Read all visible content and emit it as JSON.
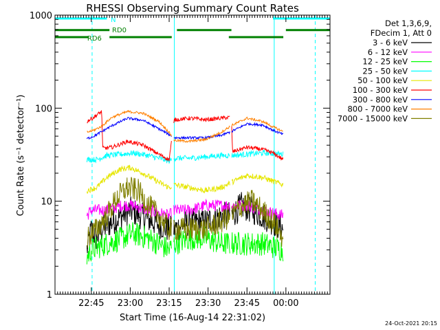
{
  "chart_data": {
    "type": "line",
    "title": "RHESSI Observing Summary Count Rates",
    "xlabel": "Start Time (16-Aug-14 22:31:02)",
    "ylabel": "Count Rate (s⁻¹ detector⁻¹)",
    "x_range_minutes": [
      0,
      106
    ],
    "ylim": [
      1,
      1000
    ],
    "y_scale": "log",
    "x_ticks": [
      {
        "t": 14,
        "label": "22:45"
      },
      {
        "t": 29,
        "label": "23:00"
      },
      {
        "t": 44,
        "label": "23:15"
      },
      {
        "t": 59,
        "label": "23:30"
      },
      {
        "t": 74,
        "label": "23:45"
      },
      {
        "t": 89,
        "label": "00:00"
      }
    ],
    "y_ticks": [
      {
        "v": 1,
        "label": "1"
      },
      {
        "v": 10,
        "label": "10"
      },
      {
        "v": 100,
        "label": "100"
      },
      {
        "v": 1000,
        "label": "1000"
      }
    ],
    "legend_header": [
      "Det 1,3,6,9,",
      "FDecim 1, Att 0"
    ],
    "data_gaps_minutes": [
      [
        0,
        12
      ],
      [
        45,
        45.6
      ],
      [
        67.5,
        68
      ],
      [
        88.5,
        106
      ]
    ],
    "series": [
      {
        "name": "3 - 6 keV",
        "color": "#000000",
        "noise": 0.35,
        "points": [
          [
            12.3,
            3
          ],
          [
            14,
            5
          ],
          [
            16,
            4
          ],
          [
            18,
            5
          ],
          [
            22,
            6
          ],
          [
            26,
            7
          ],
          [
            29,
            8
          ],
          [
            33,
            7
          ],
          [
            38,
            6
          ],
          [
            44,
            5
          ],
          [
            46,
            5
          ],
          [
            52,
            6
          ],
          [
            58,
            6
          ],
          [
            64,
            7
          ],
          [
            68,
            7
          ],
          [
            72,
            9
          ],
          [
            76,
            8
          ],
          [
            80,
            7
          ],
          [
            84,
            6
          ],
          [
            88,
            5
          ]
        ]
      },
      {
        "name": "6 - 12 keV",
        "color": "#ff00ff",
        "noise": 0.15,
        "points": [
          [
            12.3,
            7
          ],
          [
            14,
            8
          ],
          [
            20,
            8
          ],
          [
            26,
            9
          ],
          [
            30,
            9
          ],
          [
            36,
            8
          ],
          [
            44,
            7
          ],
          [
            46,
            8
          ],
          [
            52,
            8
          ],
          [
            58,
            9
          ],
          [
            64,
            9
          ],
          [
            68,
            9
          ],
          [
            74,
            9
          ],
          [
            80,
            8
          ],
          [
            88,
            7
          ]
        ]
      },
      {
        "name": "12 - 25 keV",
        "color": "#00ff00",
        "noise": 0.3,
        "points": [
          [
            12.3,
            2.5
          ],
          [
            14,
            3
          ],
          [
            20,
            3.5
          ],
          [
            26,
            4
          ],
          [
            30,
            4.5
          ],
          [
            36,
            4
          ],
          [
            44,
            3
          ],
          [
            46,
            3.5
          ],
          [
            52,
            4
          ],
          [
            58,
            4
          ],
          [
            64,
            3.5
          ],
          [
            68,
            3.5
          ],
          [
            74,
            3.5
          ],
          [
            80,
            3.5
          ],
          [
            88,
            3
          ]
        ]
      },
      {
        "name": "25 - 50 keV",
        "color": "#00ffff",
        "noise": 0.07,
        "points": [
          [
            12.3,
            28
          ],
          [
            16,
            28
          ],
          [
            20,
            31
          ],
          [
            26,
            32
          ],
          [
            30,
            33
          ],
          [
            36,
            31
          ],
          [
            44,
            27
          ],
          [
            46,
            29
          ],
          [
            52,
            29
          ],
          [
            58,
            30
          ],
          [
            64,
            31
          ],
          [
            68,
            31
          ],
          [
            74,
            32
          ],
          [
            80,
            33
          ],
          [
            88,
            32
          ]
        ]
      },
      {
        "name": "50 - 100 keV",
        "color": "#e6e600",
        "noise": 0.07,
        "points": [
          [
            12.3,
            13
          ],
          [
            16,
            14
          ],
          [
            20,
            18
          ],
          [
            25,
            22
          ],
          [
            29,
            23
          ],
          [
            34,
            20
          ],
          [
            40,
            16
          ],
          [
            44,
            14
          ],
          [
            46,
            15
          ],
          [
            52,
            14
          ],
          [
            58,
            13
          ],
          [
            64,
            14
          ],
          [
            68,
            16
          ],
          [
            74,
            19
          ],
          [
            80,
            18
          ],
          [
            88,
            15
          ]
        ]
      },
      {
        "name": "100 - 300 keV",
        "color": "#ff0000",
        "noise": 0.05,
        "points": [
          [
            12.3,
            72
          ],
          [
            15,
            80
          ],
          [
            18,
            92
          ],
          [
            18.4,
            37
          ],
          [
            22,
            38
          ],
          [
            28,
            44
          ],
          [
            34,
            40
          ],
          [
            40,
            32
          ],
          [
            44,
            28
          ],
          [
            46,
            75
          ],
          [
            52,
            78
          ],
          [
            58,
            75
          ],
          [
            64,
            78
          ],
          [
            68,
            80
          ],
          [
            68.4,
            34
          ],
          [
            74,
            38
          ],
          [
            80,
            36
          ],
          [
            84,
            33
          ],
          [
            88,
            28
          ]
        ]
      },
      {
        "name": "300 - 800 keV",
        "color": "#0000ff",
        "noise": 0.03,
        "points": [
          [
            12.3,
            47
          ],
          [
            15,
            50
          ],
          [
            18,
            56
          ],
          [
            22,
            65
          ],
          [
            28,
            78
          ],
          [
            34,
            74
          ],
          [
            40,
            60
          ],
          [
            44,
            52
          ],
          [
            46,
            48
          ],
          [
            52,
            48
          ],
          [
            58,
            48
          ],
          [
            64,
            51
          ],
          [
            68,
            56
          ],
          [
            74,
            68
          ],
          [
            80,
            66
          ],
          [
            84,
            58
          ],
          [
            88,
            52
          ]
        ]
      },
      {
        "name": "800 - 7000 keV",
        "color": "#ff8000",
        "noise": 0.03,
        "points": [
          [
            12.3,
            55
          ],
          [
            15,
            58
          ],
          [
            18,
            64
          ],
          [
            22,
            80
          ],
          [
            28,
            92
          ],
          [
            34,
            88
          ],
          [
            40,
            72
          ],
          [
            44,
            55
          ],
          [
            46,
            45
          ],
          [
            52,
            44
          ],
          [
            58,
            46
          ],
          [
            64,
            55
          ],
          [
            68,
            65
          ],
          [
            74,
            78
          ],
          [
            80,
            72
          ],
          [
            84,
            63
          ],
          [
            88,
            56
          ]
        ]
      },
      {
        "name": "7000 - 15000 keV",
        "color": "#808000",
        "noise": 0.3,
        "points": [
          [
            12.3,
            4
          ],
          [
            16,
            5
          ],
          [
            20,
            7
          ],
          [
            24,
            11
          ],
          [
            28,
            14
          ],
          [
            32,
            13
          ],
          [
            36,
            9
          ],
          [
            40,
            7
          ],
          [
            44,
            5
          ],
          [
            46,
            5
          ],
          [
            52,
            5
          ],
          [
            58,
            5
          ],
          [
            64,
            6
          ],
          [
            68,
            7
          ],
          [
            72,
            9
          ],
          [
            76,
            10
          ],
          [
            80,
            8
          ],
          [
            84,
            6
          ],
          [
            88,
            4
          ]
        ]
      }
    ],
    "flags": [
      {
        "name": "N",
        "color": "#00ffff",
        "level": 920,
        "segments": [
          [
            0,
            20
          ],
          [
            84,
            106
          ]
        ]
      },
      {
        "name": "RD0",
        "color": "#008000",
        "level": 690,
        "segments": [
          [
            0,
            21
          ],
          [
            47,
            68
          ],
          [
            89,
            106
          ]
        ]
      },
      {
        "name": "RD6",
        "color": "#008000",
        "level": 580,
        "segments": [
          [
            0,
            13
          ],
          [
            21,
            45
          ],
          [
            67,
            88
          ]
        ]
      }
    ],
    "vertical_markers": [
      {
        "t": 14.3,
        "color": "#00ffff",
        "style": "dashed"
      },
      {
        "t": 46,
        "color": "#00ffff",
        "style": "solid"
      },
      {
        "t": 84.5,
        "color": "#00ffff",
        "style": "solid"
      },
      {
        "t": 100.3,
        "color": "#00ffff",
        "style": "dashed"
      }
    ]
  },
  "timestamp": "24-Oct-2021 20:15"
}
